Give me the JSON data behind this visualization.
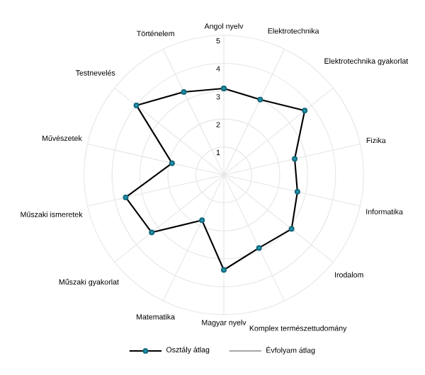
{
  "chart_data": {
    "type": "radar",
    "categories": [
      "Angol nyelv",
      "Elektrotechnika",
      "Elektrotechnika gyakorlat",
      "Fizika",
      "Informatika",
      "Irodalom",
      "Komplex természettudomány",
      "Magyar nyelv",
      "Matematika",
      "Műszaki gyakorlat",
      "Műszaki ismeretek",
      "Művészetek",
      "Testnevelés",
      "Történelem"
    ],
    "series": [
      {
        "name": "Osztály átlag",
        "color": "#000000",
        "values": [
          3.1,
          3.0,
          3.7,
          2.6,
          2.7,
          3.1,
          2.9,
          3.4,
          1.8,
          3.3,
          3.6,
          1.9,
          4.0,
          3.3
        ]
      },
      {
        "name": "Évfolyam átlag",
        "color": "#a6a6a6",
        "values": [
          null,
          null,
          null,
          null,
          null,
          null,
          null,
          null,
          null,
          null,
          null,
          null,
          null,
          null
        ]
      }
    ],
    "ylim": [
      0,
      5
    ],
    "yticks": [
      1,
      2,
      3,
      4,
      5
    ],
    "grid": true,
    "legend": "bottom",
    "marker": "circle",
    "line_style": "solid"
  }
}
